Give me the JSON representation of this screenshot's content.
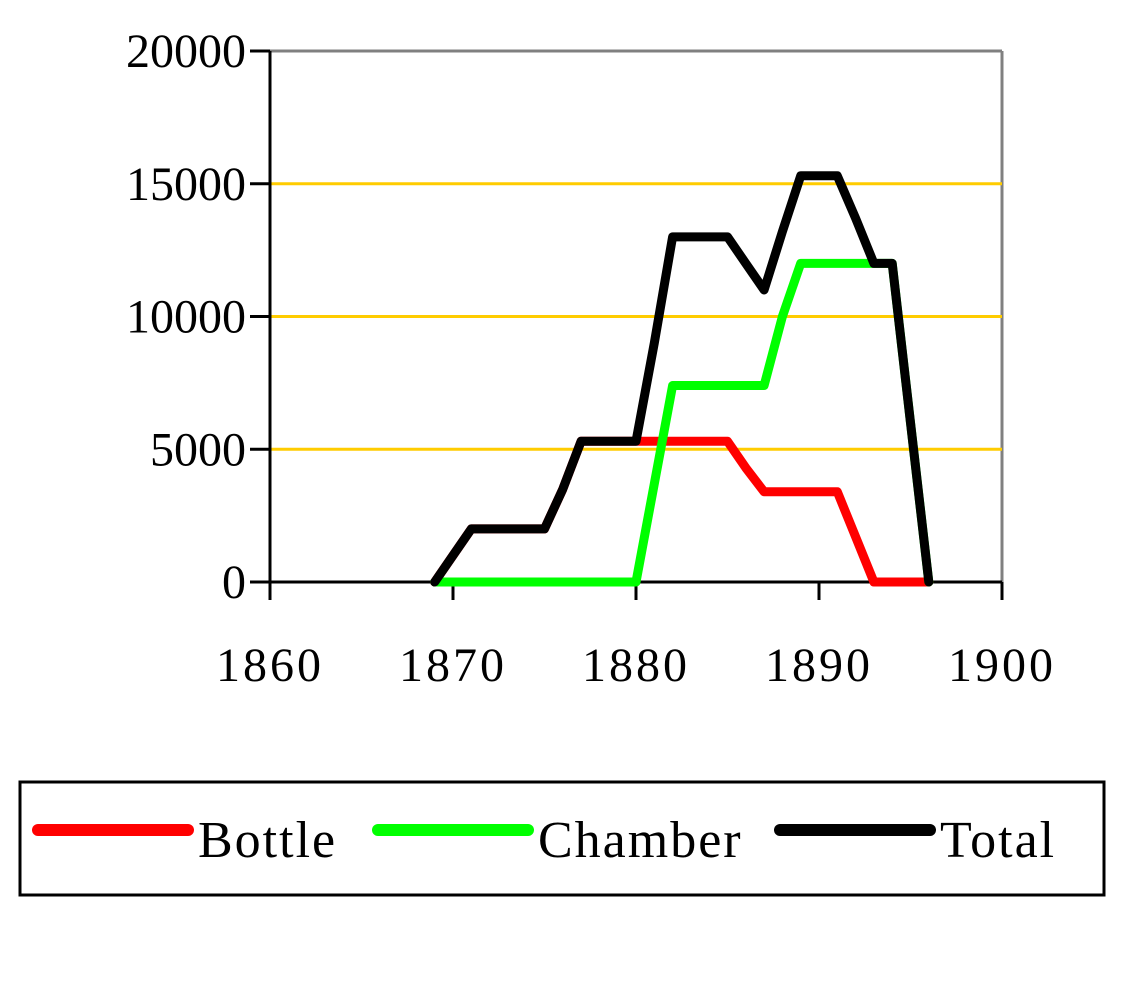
{
  "chart_data": {
    "type": "line",
    "x": [
      1869,
      1870,
      1871,
      1872,
      1873,
      1874,
      1875,
      1876,
      1877,
      1878,
      1879,
      1880,
      1881,
      1882,
      1883,
      1884,
      1885,
      1886,
      1887,
      1888,
      1889,
      1890,
      1891,
      1892,
      1893,
      1894,
      1895,
      1896
    ],
    "series": [
      {
        "name": "Bottle",
        "color": "#ff0000",
        "values": [
          0,
          1000,
          2000,
          2000,
          2000,
          2000,
          2000,
          3500,
          5300,
          5300,
          5300,
          5300,
          5300,
          5300,
          5300,
          5300,
          5300,
          4300,
          3400,
          3400,
          3400,
          3400,
          3400,
          1700,
          0,
          0,
          0,
          0
        ]
      },
      {
        "name": "Chamber",
        "color": "#00ff00",
        "values": [
          0,
          0,
          0,
          0,
          0,
          0,
          0,
          0,
          0,
          0,
          0,
          0,
          3700,
          7400,
          7400,
          7400,
          7400,
          7400,
          7400,
          10000,
          12000,
          12000,
          12000,
          12000,
          12000,
          12000,
          6000,
          0
        ]
      },
      {
        "name": "Total",
        "color": "#000000",
        "values": [
          0,
          1000,
          2000,
          2000,
          2000,
          2000,
          2000,
          3500,
          5300,
          5300,
          5300,
          5300,
          9000,
          13000,
          13000,
          13000,
          13000,
          12000,
          11000,
          13200,
          15300,
          15300,
          15300,
          13700,
          12000,
          12000,
          6000,
          0
        ]
      }
    ],
    "xlim": [
      1860,
      1900
    ],
    "xticks": [
      1860,
      1870,
      1880,
      1890,
      1900
    ],
    "ylim": [
      0,
      20000
    ],
    "yticks": [
      0,
      5000,
      10000,
      15000,
      20000
    ],
    "grid": true,
    "grid_color": "#ffcc00",
    "legend": "bottom"
  }
}
